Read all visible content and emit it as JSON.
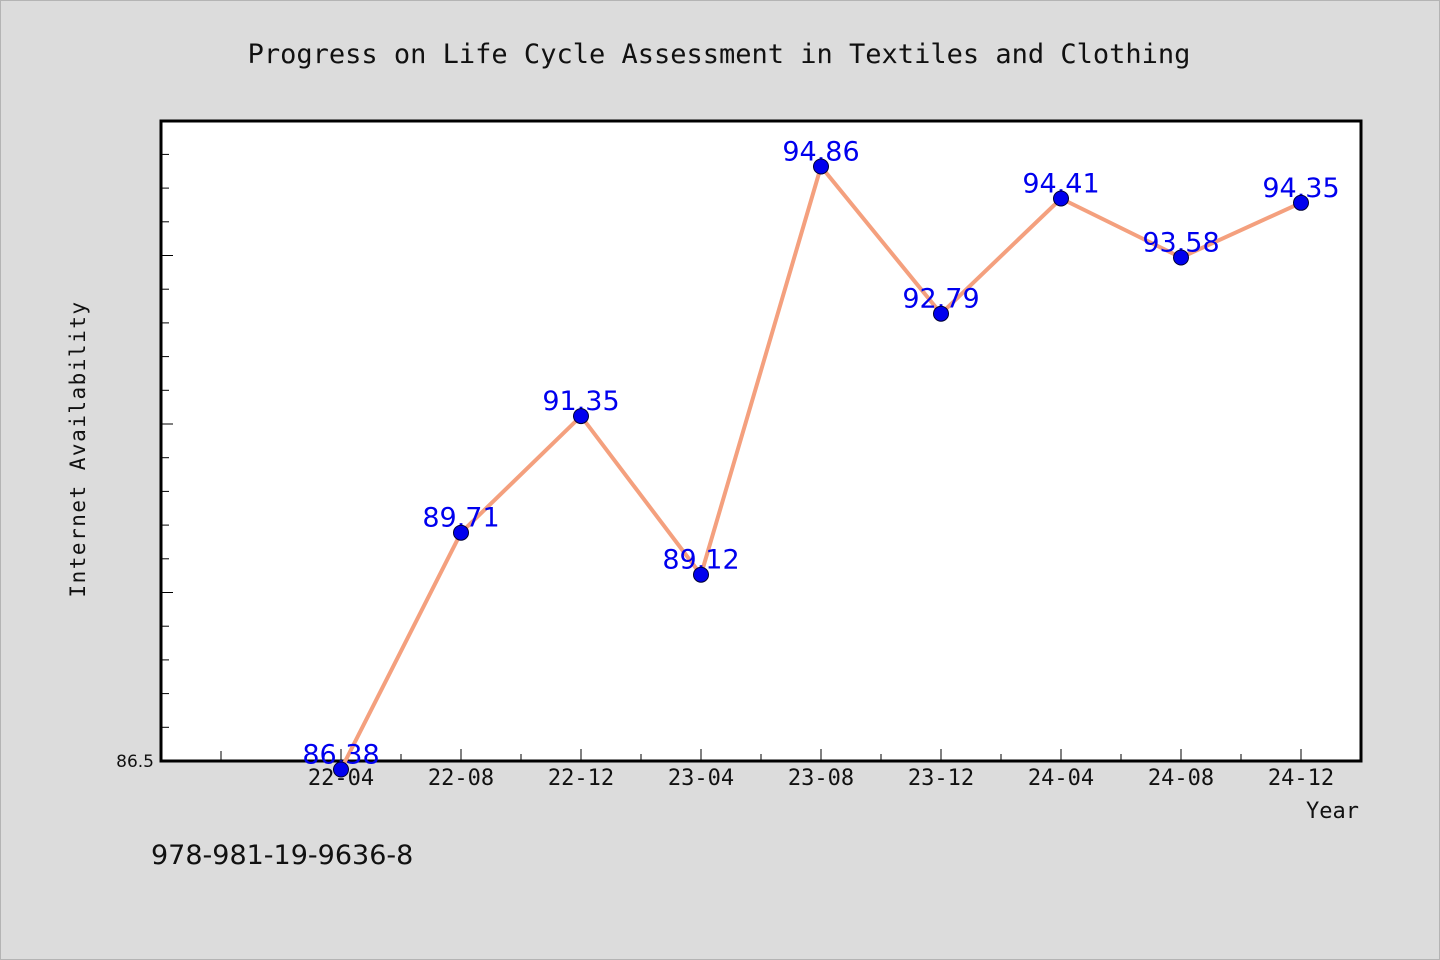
{
  "chart_data": {
    "type": "line",
    "title": "Progress on Life Cycle Assessment in Textiles and Clothing",
    "xlabel": "Year",
    "ylabel": "Internet Availability",
    "categories": [
      "22-04",
      "22-08",
      "22-12",
      "23-04",
      "23-08",
      "23-12",
      "24-04",
      "24-08",
      "24-12"
    ],
    "series": [
      {
        "values": [
          86.38,
          89.71,
          91.35,
          89.12,
          94.86,
          92.79,
          94.41,
          93.58,
          94.35
        ],
        "labels": [
          "86.38",
          "89.71",
          "91.35",
          "89.12",
          "94.86",
          "92.79",
          "94.41",
          "93.58",
          "94.35"
        ]
      }
    ],
    "ylim": [
      86.5,
      95.5
    ],
    "ytick_labels": [
      "86.5"
    ],
    "grid": false,
    "line_color": "#f4a07e",
    "marker_color": "#0000ee",
    "label_color": "#0000ee",
    "plot_background": "#ffffff",
    "page_background": "#dcdcdc"
  },
  "footer_note": "978-981-19-9636-8"
}
